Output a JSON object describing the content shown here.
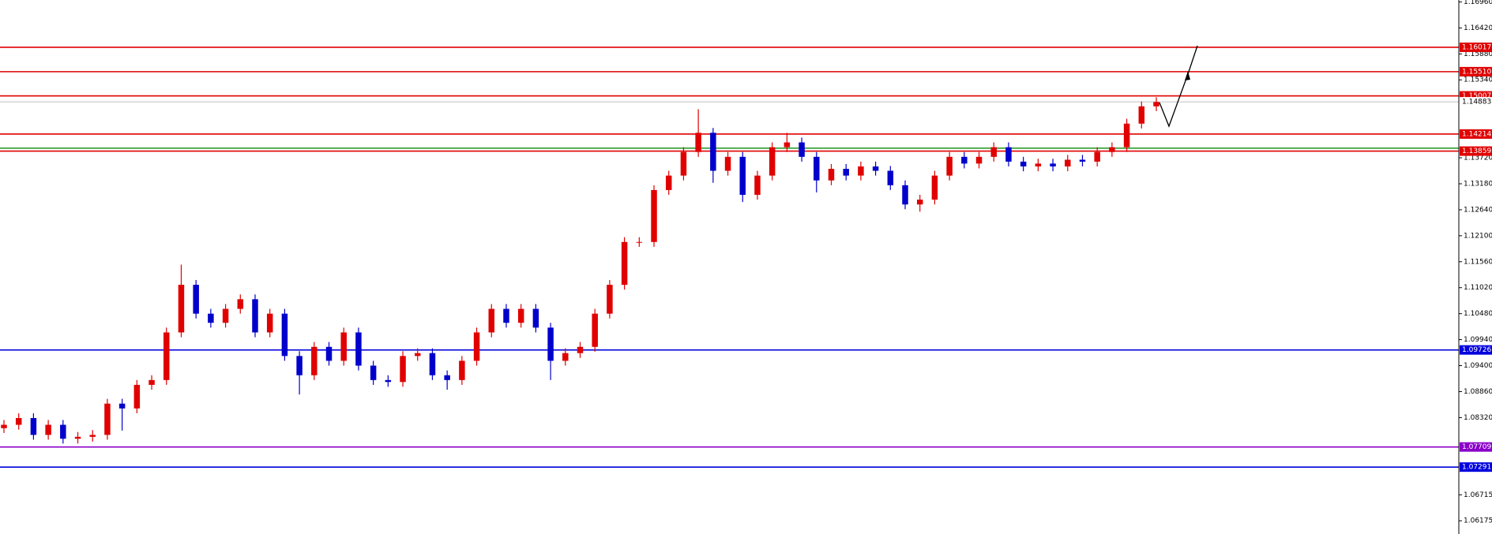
{
  "chart_data": {
    "type": "candlestick",
    "up_color": "#e00000",
    "down_color": "#0000cc",
    "ylim": [
      1.059,
      1.17
    ],
    "yticks": [
      {
        "value": 1.1696,
        "label": "1.16960"
      },
      {
        "value": 1.1642,
        "label": "1.16420"
      },
      {
        "value": 1.1588,
        "label": "1.15880"
      },
      {
        "value": 1.1534,
        "label": "1.15340"
      },
      {
        "value": 1.1372,
        "label": "1.13720"
      },
      {
        "value": 1.1318,
        "label": "1.13180"
      },
      {
        "value": 1.1264,
        "label": "1.12640"
      },
      {
        "value": 1.121,
        "label": "1.12100"
      },
      {
        "value": 1.1156,
        "label": "1.11560"
      },
      {
        "value": 1.1102,
        "label": "1.11020"
      },
      {
        "value": 1.1048,
        "label": "1.10480"
      },
      {
        "value": 1.0994,
        "label": "1.09940"
      },
      {
        "value": 1.094,
        "label": "1.09400"
      },
      {
        "value": 1.0886,
        "label": "1.08860"
      },
      {
        "value": 1.0832,
        "label": "1.08320"
      },
      {
        "value": 1.06715,
        "label": "1.06715"
      },
      {
        "value": 1.06175,
        "label": "1.06175"
      }
    ],
    "levels": [
      {
        "value": 1.16017,
        "label": "1.16017",
        "color": "#e00000"
      },
      {
        "value": 1.1551,
        "label": "1.15510",
        "color": "#e00000"
      },
      {
        "value": 1.15007,
        "label": "1.15007",
        "color": "#e00000"
      },
      {
        "value": 1.14214,
        "label": "1.14214",
        "color": "#e00000"
      },
      {
        "value": 1.1392,
        "color": "#2e9e2e"
      },
      {
        "value": 1.13859,
        "label": "1.13859",
        "color": "#e00000"
      },
      {
        "value": 1.09726,
        "label": "1.09726",
        "color": "#0000dd"
      },
      {
        "value": 1.07709,
        "label": "1.07709",
        "color": "#8a00c8"
      },
      {
        "value": 1.07291,
        "label": "1.07291",
        "color": "#0000dd"
      }
    ],
    "last_price": {
      "value": 1.14883,
      "label": "1.14883",
      "color": "#c0c0c0"
    },
    "open": [
      1.081,
      1.0817,
      1.0831,
      1.0796,
      1.0817,
      1.0788,
      1.0792,
      1.0796,
      1.0861,
      1.0851,
      1.09,
      1.091,
      1.1009,
      1.1108,
      1.1048,
      1.1029,
      1.1058,
      1.1078,
      1.1009,
      1.1048,
      1.096,
      1.092,
      1.0979,
      1.095,
      1.1009,
      1.094,
      1.091,
      1.0906,
      1.096,
      1.0966,
      1.092,
      1.091,
      1.095,
      1.1009,
      1.1058,
      1.1029,
      1.1058,
      1.1019,
      1.095,
      1.0966,
      1.0979,
      1.1048,
      1.1108,
      1.1197,
      1.1197,
      1.1305,
      1.1335,
      1.1384,
      1.1424,
      1.1345,
      1.1374,
      1.1295,
      1.1335,
      1.1394,
      1.1404,
      1.1374,
      1.1325,
      1.1349,
      1.1335,
      1.1354,
      1.1345,
      1.1315,
      1.1275,
      1.1285,
      1.1335,
      1.1374,
      1.136,
      1.1374,
      1.1394,
      1.1364,
      1.1354,
      1.136,
      1.1354,
      1.1368,
      1.1364,
      1.1384,
      1.1394,
      1.1443,
      1.1479
    ],
    "high": [
      1.0827,
      1.0841,
      1.0841,
      1.0827,
      1.0827,
      1.0802,
      1.0806,
      1.0871,
      1.0871,
      1.091,
      1.092,
      1.1019,
      1.115,
      1.1118,
      1.1058,
      1.1068,
      1.1088,
      1.1088,
      1.1058,
      1.1058,
      1.097,
      1.0989,
      1.0989,
      1.1019,
      1.1019,
      1.095,
      1.092,
      1.097,
      1.0976,
      1.0976,
      1.093,
      1.096,
      1.1019,
      1.1068,
      1.1068,
      1.1068,
      1.1068,
      1.1029,
      1.0976,
      1.0989,
      1.1058,
      1.1118,
      1.1207,
      1.1207,
      1.1315,
      1.1345,
      1.1394,
      1.1473,
      1.1434,
      1.1384,
      1.1384,
      1.1345,
      1.1404,
      1.1424,
      1.1414,
      1.1384,
      1.1359,
      1.1359,
      1.1364,
      1.1364,
      1.1355,
      1.1325,
      1.1295,
      1.1345,
      1.1384,
      1.1384,
      1.1384,
      1.1404,
      1.1404,
      1.1374,
      1.137,
      1.137,
      1.1378,
      1.1378,
      1.1394,
      1.1404,
      1.1453,
      1.1489,
      1.1498
    ],
    "low": [
      1.08,
      1.0807,
      1.0786,
      1.0786,
      1.0778,
      1.0778,
      1.0782,
      1.0786,
      1.0805,
      1.0841,
      1.089,
      1.09,
      1.0999,
      1.1038,
      1.1019,
      1.1019,
      1.1048,
      1.0999,
      1.0999,
      1.095,
      1.088,
      1.091,
      1.094,
      1.094,
      1.093,
      1.09,
      1.0896,
      1.0896,
      1.095,
      1.091,
      1.089,
      1.09,
      1.094,
      1.0999,
      1.1019,
      1.1019,
      1.1009,
      1.091,
      1.094,
      1.0956,
      1.0969,
      1.1038,
      1.1098,
      1.1187,
      1.1187,
      1.1295,
      1.1325,
      1.1374,
      1.132,
      1.1335,
      1.128,
      1.1285,
      1.1325,
      1.1384,
      1.1364,
      1.13,
      1.1315,
      1.1325,
      1.1325,
      1.1335,
      1.1305,
      1.1265,
      1.126,
      1.1275,
      1.1325,
      1.135,
      1.135,
      1.1364,
      1.1354,
      1.1344,
      1.1344,
      1.1344,
      1.1344,
      1.1354,
      1.1354,
      1.1374,
      1.1384,
      1.1433,
      1.1469
    ],
    "close": [
      1.0817,
      1.0831,
      1.0796,
      1.0817,
      1.0788,
      1.0792,
      1.0796,
      1.0861,
      1.0851,
      1.09,
      1.091,
      1.1009,
      1.1108,
      1.1048,
      1.1029,
      1.1058,
      1.1078,
      1.1009,
      1.1048,
      1.096,
      1.092,
      1.0979,
      1.095,
      1.1009,
      1.094,
      1.091,
      1.0906,
      1.096,
      1.0966,
      1.092,
      1.091,
      1.095,
      1.1009,
      1.1058,
      1.1029,
      1.1058,
      1.1019,
      1.095,
      1.0966,
      1.0979,
      1.1048,
      1.1108,
      1.1197,
      1.1197,
      1.1305,
      1.1335,
      1.1384,
      1.1424,
      1.1345,
      1.1374,
      1.1295,
      1.1335,
      1.1394,
      1.1404,
      1.1374,
      1.1325,
      1.1349,
      1.1335,
      1.1354,
      1.1345,
      1.1315,
      1.1275,
      1.1285,
      1.1335,
      1.1374,
      1.136,
      1.1374,
      1.1394,
      1.1364,
      1.1354,
      1.136,
      1.1354,
      1.1368,
      1.1364,
      1.1384,
      1.1394,
      1.1443,
      1.1479,
      1.1488
    ]
  }
}
